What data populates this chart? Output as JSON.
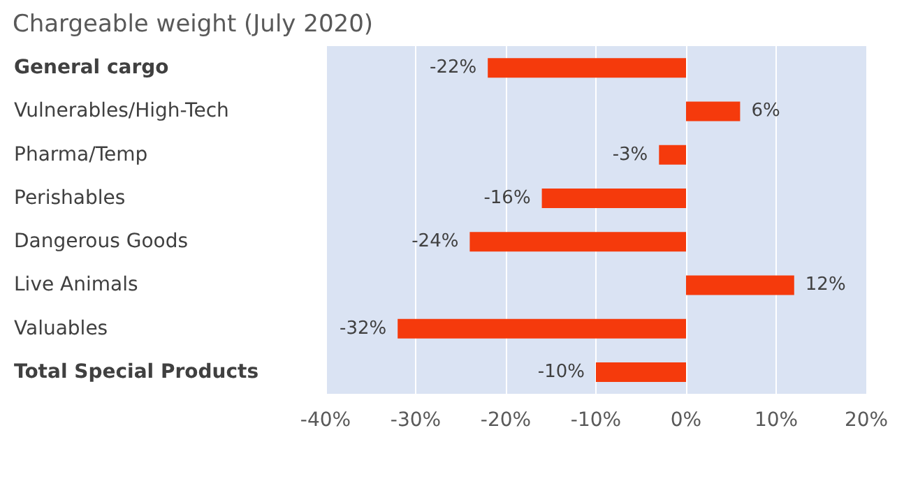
{
  "chart_data": {
    "type": "bar",
    "orientation": "horizontal",
    "title": "Chargeable weight (July 2020)",
    "categories": [
      "General cargo",
      "Vulnerables/High-Tech",
      "Pharma/Temp",
      "Perishables",
      "Dangerous Goods",
      "Live Animals",
      "Valuables",
      "Total Special Products"
    ],
    "values": [
      -22,
      6,
      -3,
      -16,
      -24,
      12,
      -32,
      -10
    ],
    "value_labels": [
      "-22%",
      "6%",
      "-3%",
      "-16%",
      "-24%",
      "12%",
      "-32%",
      "-10%"
    ],
    "color": "#f53a0c",
    "xlim": [
      -40,
      20
    ],
    "xticks": [
      {
        "value": -40,
        "label": "-40%"
      },
      {
        "value": -30,
        "label": "-30%"
      },
      {
        "value": -20,
        "label": "-20%"
      },
      {
        "value": -10,
        "label": "-10%"
      },
      {
        "value": 0,
        "label": "0%"
      },
      {
        "value": 10,
        "label": "10%"
      },
      {
        "value": 20,
        "label": "20%"
      }
    ],
    "grid": "x"
  }
}
